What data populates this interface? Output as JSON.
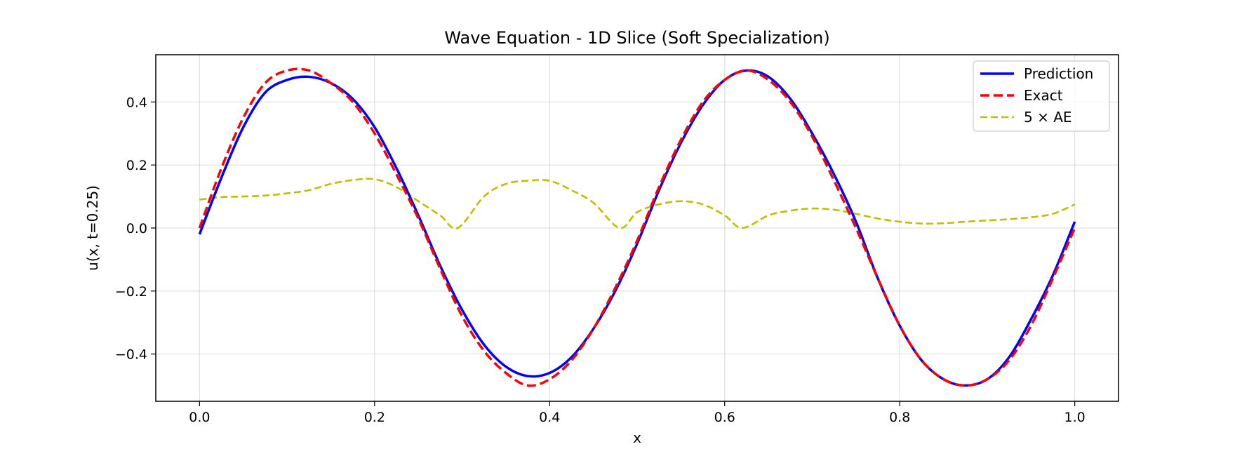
{
  "chart_data": {
    "type": "line",
    "title": "Wave Equation - 1D Slice (Soft Specialization)",
    "xlabel": "x",
    "ylabel": "u(x, t=0.25)",
    "xlim": [
      -0.05,
      1.05
    ],
    "ylim": [
      -0.55,
      0.55
    ],
    "x_ticks": [
      0.0,
      0.2,
      0.4,
      0.6,
      0.8,
      1.0
    ],
    "x_tick_labels": [
      "0.0",
      "0.2",
      "0.4",
      "0.6",
      "0.8",
      "1.0"
    ],
    "y_ticks": [
      -0.4,
      -0.2,
      0.0,
      0.2,
      0.4
    ],
    "y_tick_labels": [
      "−0.4",
      "−0.2",
      "0.0",
      "0.2",
      "0.4"
    ],
    "grid": true,
    "legend_position": "top-right",
    "series": [
      {
        "name": "Prediction",
        "color": "#0000ff",
        "style": "solid",
        "x": [
          0.0,
          0.025,
          0.05,
          0.075,
          0.1,
          0.125,
          0.15,
          0.175,
          0.2,
          0.225,
          0.25,
          0.275,
          0.3,
          0.325,
          0.35,
          0.375,
          0.4,
          0.425,
          0.45,
          0.475,
          0.5,
          0.525,
          0.55,
          0.575,
          0.6,
          0.625,
          0.65,
          0.675,
          0.7,
          0.725,
          0.75,
          0.775,
          0.8,
          0.825,
          0.85,
          0.875,
          0.9,
          0.925,
          0.95,
          0.975,
          1.0
        ],
        "y": [
          -0.02,
          0.16,
          0.32,
          0.43,
          0.47,
          0.48,
          0.46,
          0.41,
          0.32,
          0.19,
          0.04,
          -0.12,
          -0.26,
          -0.37,
          -0.44,
          -0.47,
          -0.46,
          -0.41,
          -0.32,
          -0.2,
          -0.05,
          0.12,
          0.27,
          0.39,
          0.47,
          0.5,
          0.48,
          0.41,
          0.3,
          0.17,
          0.02,
          -0.16,
          -0.31,
          -0.42,
          -0.48,
          -0.5,
          -0.48,
          -0.41,
          -0.29,
          -0.15,
          0.02
        ]
      },
      {
        "name": "Exact",
        "color": "#ff0000",
        "style": "dashed",
        "x": [
          0.0,
          0.025,
          0.05,
          0.075,
          0.1,
          0.125,
          0.15,
          0.175,
          0.2,
          0.225,
          0.25,
          0.275,
          0.3,
          0.325,
          0.35,
          0.375,
          0.4,
          0.425,
          0.45,
          0.475,
          0.5,
          0.525,
          0.55,
          0.575,
          0.6,
          0.625,
          0.65,
          0.675,
          0.7,
          0.725,
          0.75,
          0.775,
          0.8,
          0.825,
          0.85,
          0.875,
          0.9,
          0.925,
          0.95,
          0.975,
          1.0
        ],
        "y": [
          0.0,
          0.19,
          0.35,
          0.46,
          0.5,
          0.5,
          0.46,
          0.4,
          0.3,
          0.17,
          0.03,
          -0.13,
          -0.28,
          -0.39,
          -0.46,
          -0.5,
          -0.48,
          -0.42,
          -0.32,
          -0.19,
          -0.04,
          0.13,
          0.28,
          0.4,
          0.47,
          0.5,
          0.47,
          0.4,
          0.29,
          0.15,
          0.0,
          -0.16,
          -0.31,
          -0.42,
          -0.48,
          -0.5,
          -0.48,
          -0.42,
          -0.31,
          -0.16,
          0.0
        ]
      },
      {
        "name": "5 × AE",
        "color": "#bfbf00",
        "style": "dashed",
        "x": [
          0.0,
          0.025,
          0.05,
          0.075,
          0.1,
          0.125,
          0.15,
          0.175,
          0.2,
          0.225,
          0.25,
          0.275,
          0.295,
          0.325,
          0.35,
          0.375,
          0.4,
          0.425,
          0.45,
          0.48,
          0.5,
          0.525,
          0.55,
          0.575,
          0.6,
          0.62,
          0.65,
          0.675,
          0.7,
          0.725,
          0.75,
          0.775,
          0.8,
          0.825,
          0.85,
          0.875,
          0.9,
          0.925,
          0.95,
          0.975,
          1.0
        ],
        "y": [
          0.09,
          0.098,
          0.1,
          0.103,
          0.11,
          0.12,
          0.14,
          0.152,
          0.155,
          0.13,
          0.085,
          0.04,
          0.0,
          0.1,
          0.14,
          0.15,
          0.15,
          0.12,
          0.08,
          0.0,
          0.05,
          0.075,
          0.085,
          0.075,
          0.04,
          0.0,
          0.04,
          0.055,
          0.062,
          0.058,
          0.045,
          0.03,
          0.02,
          0.014,
          0.015,
          0.02,
          0.024,
          0.028,
          0.034,
          0.045,
          0.075
        ]
      }
    ]
  }
}
